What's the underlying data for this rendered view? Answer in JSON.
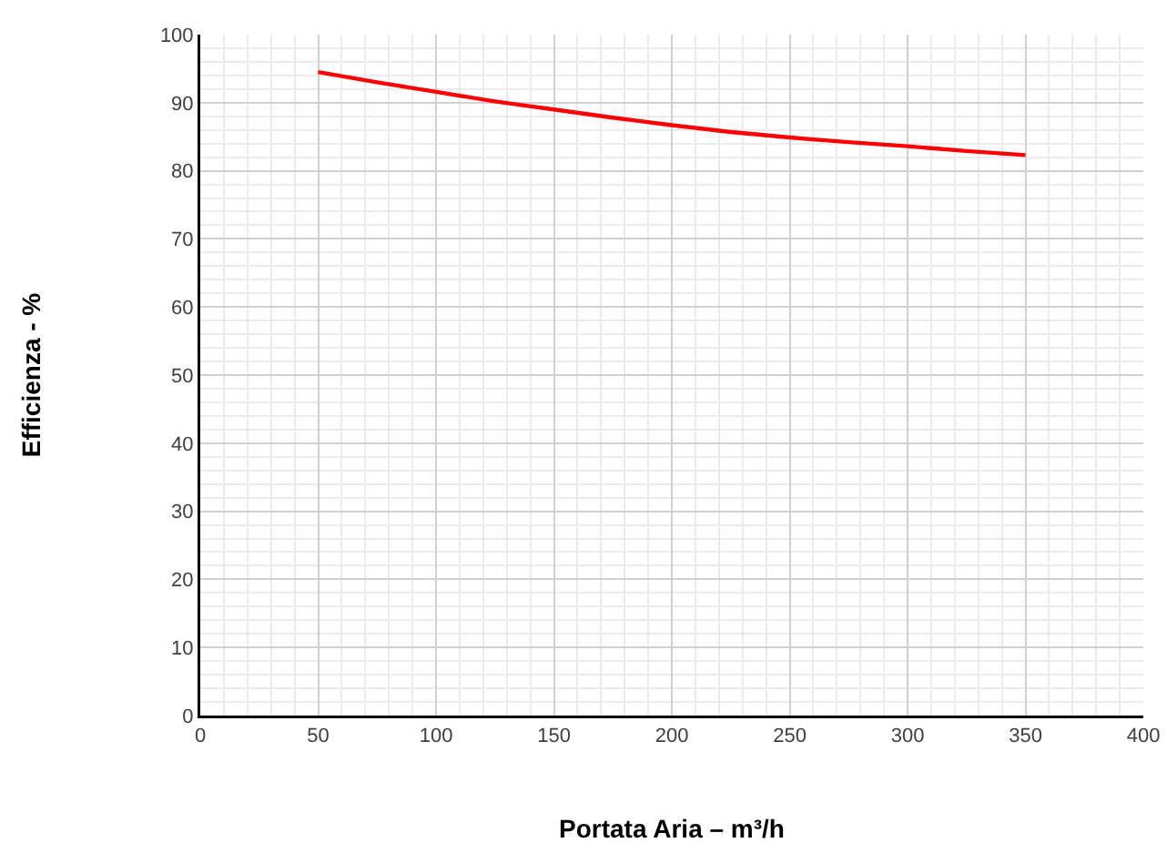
{
  "chart_data": {
    "type": "line",
    "xlabel": "Portata Aria – m³/h",
    "ylabel": "Efficienza - %",
    "x": [
      50,
      75,
      100,
      125,
      150,
      175,
      200,
      225,
      250,
      275,
      300,
      325,
      350
    ],
    "series": [
      {
        "color": "#ff0000",
        "values": [
          94.5,
          93,
          91.6,
          90.2,
          89,
          87.8,
          86.7,
          85.7,
          84.9,
          84.2,
          83.6,
          82.9,
          82.3
        ]
      }
    ],
    "xlim": [
      0,
      400
    ],
    "xticks": [
      0,
      50,
      100,
      150,
      200,
      250,
      300,
      350,
      400
    ],
    "ylim": [
      0,
      100
    ],
    "yticks": [
      0,
      10,
      20,
      30,
      40,
      50,
      60,
      70,
      80,
      90,
      100
    ],
    "grid": true,
    "marker": "none",
    "line_style": "solid"
  }
}
